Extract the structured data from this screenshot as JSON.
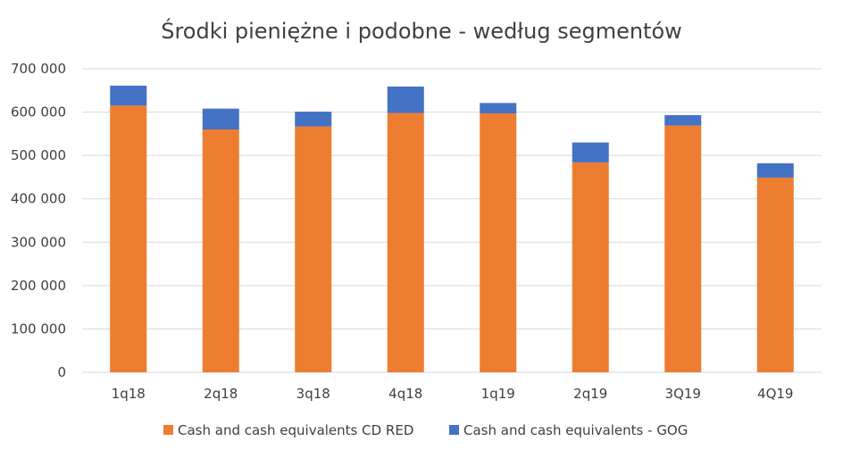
{
  "chart_data": {
    "type": "bar",
    "stacked": true,
    "title": "Środki pieniężne i podobne - według segmentów",
    "xlabel": "",
    "ylabel": "",
    "categories": [
      "1q18",
      "2q18",
      "3q18",
      "4q18",
      "1q19",
      "2q19",
      "3Q19",
      "4Q19"
    ],
    "series": [
      {
        "name": "Cash and cash equivalents CD RED",
        "color": "#ed7d31",
        "values": [
          615000,
          560000,
          567000,
          598000,
          597000,
          484000,
          569000,
          449000
        ]
      },
      {
        "name": "Cash and cash equivalents - GOG",
        "color": "#4472c4",
        "values": [
          46000,
          48000,
          34000,
          61000,
          24000,
          46000,
          24000,
          33000
        ]
      }
    ],
    "ylim": [
      0,
      700000
    ],
    "yticks": [
      0,
      100000,
      200000,
      300000,
      400000,
      500000,
      600000,
      700000
    ],
    "ytick_labels": [
      "0",
      "100 000",
      "200 000",
      "300 000",
      "400 000",
      "500 000",
      "600 000",
      "700 000"
    ],
    "grid": true,
    "legend": "bottom"
  }
}
